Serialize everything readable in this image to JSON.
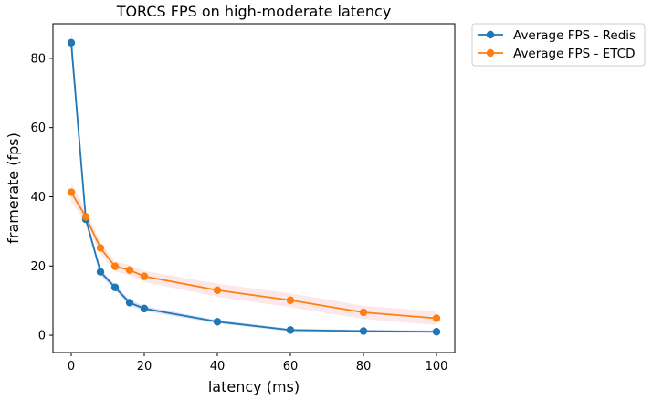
{
  "chart_data": {
    "type": "line",
    "title": "TORCS FPS on high-moderate latency",
    "xlabel": "latency (ms)",
    "ylabel": "framerate (fps)",
    "xlim": [
      -5,
      105
    ],
    "ylim": [
      -5,
      90
    ],
    "xticks": [
      0,
      20,
      40,
      60,
      80,
      100
    ],
    "yticks": [
      0,
      20,
      40,
      60,
      80
    ],
    "grid": false,
    "legend_position": "outside-top-right",
    "x": [
      0,
      4,
      8,
      12,
      16,
      20,
      40,
      60,
      80,
      100
    ],
    "series": [
      {
        "name": "Average FPS - Redis",
        "color": "#1f77b4",
        "band_color": "#3b5bdb",
        "values": [
          84.5,
          33.5,
          18.3,
          13.8,
          9.4,
          7.7,
          3.9,
          1.5,
          1.2,
          1.0
        ],
        "band_half_width": [
          4.0,
          1.3,
          1.0,
          0.8,
          0.8,
          0.7,
          0.5,
          0.4,
          0.4,
          0.4
        ]
      },
      {
        "name": "Average FPS - ETCD",
        "color": "#ff7f0e",
        "band_color": "#f08080",
        "values": [
          41.3,
          34.2,
          25.2,
          19.9,
          18.8,
          17.0,
          13.0,
          10.1,
          6.6,
          4.9
        ],
        "band_half_width": [
          2.8,
          1.8,
          1.6,
          1.5,
          1.5,
          1.6,
          1.9,
          2.0,
          1.9,
          2.0
        ]
      }
    ]
  }
}
